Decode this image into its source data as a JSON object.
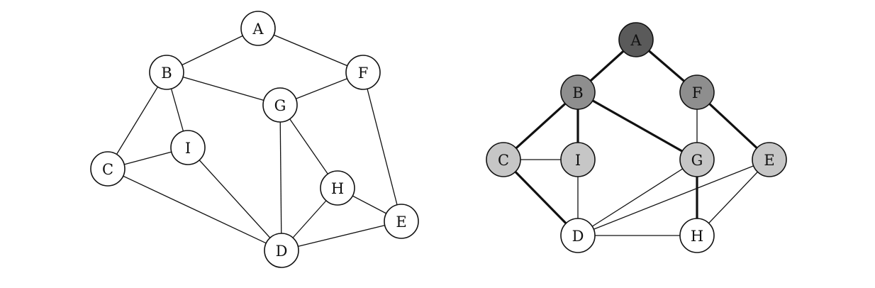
{
  "colors": {
    "background": "#ffffff",
    "line": "#111111",
    "level_0": "#5a5a5a",
    "level_1": "#8e8e8e",
    "level_2": "#c6c6c6",
    "level_3": "#ffffff"
  },
  "graphs": [
    {
      "nodes": [
        {
          "id": "A",
          "label": "A",
          "level": 3
        },
        {
          "id": "B",
          "label": "B",
          "level": 3
        },
        {
          "id": "F",
          "label": "F",
          "level": 3
        },
        {
          "id": "G",
          "label": "G",
          "level": 3
        },
        {
          "id": "I",
          "label": "I",
          "level": 3
        },
        {
          "id": "C",
          "label": "C",
          "level": 3
        },
        {
          "id": "H",
          "label": "H",
          "level": 3
        },
        {
          "id": "E",
          "label": "E",
          "level": 3
        },
        {
          "id": "D",
          "label": "D",
          "level": 3
        }
      ],
      "edges": [
        {
          "from": "A",
          "to": "B",
          "tree": false
        },
        {
          "from": "A",
          "to": "F",
          "tree": false
        },
        {
          "from": "B",
          "to": "G",
          "tree": false
        },
        {
          "from": "F",
          "to": "G",
          "tree": false
        },
        {
          "from": "B",
          "to": "C",
          "tree": false
        },
        {
          "from": "B",
          "to": "I",
          "tree": false
        },
        {
          "from": "C",
          "to": "I",
          "tree": false
        },
        {
          "from": "C",
          "to": "D",
          "tree": false
        },
        {
          "from": "I",
          "to": "D",
          "tree": false
        },
        {
          "from": "G",
          "to": "D",
          "tree": false
        },
        {
          "from": "G",
          "to": "H",
          "tree": false
        },
        {
          "from": "H",
          "to": "D",
          "tree": false
        },
        {
          "from": "H",
          "to": "E",
          "tree": false
        },
        {
          "from": "F",
          "to": "E",
          "tree": false
        },
        {
          "from": "D",
          "to": "E",
          "tree": false
        }
      ]
    },
    {
      "nodes": [
        {
          "id": "A",
          "label": "A",
          "level": 0
        },
        {
          "id": "B",
          "label": "B",
          "level": 1
        },
        {
          "id": "F",
          "label": "F",
          "level": 1
        },
        {
          "id": "C",
          "label": "C",
          "level": 2
        },
        {
          "id": "I",
          "label": "I",
          "level": 2
        },
        {
          "id": "G",
          "label": "G",
          "level": 2
        },
        {
          "id": "E",
          "label": "E",
          "level": 2
        },
        {
          "id": "D",
          "label": "D",
          "level": 3
        },
        {
          "id": "H",
          "label": "H",
          "level": 3
        }
      ],
      "edges": [
        {
          "from": "A",
          "to": "B",
          "tree": true
        },
        {
          "from": "A",
          "to": "F",
          "tree": true
        },
        {
          "from": "B",
          "to": "C",
          "tree": true
        },
        {
          "from": "B",
          "to": "I",
          "tree": true
        },
        {
          "from": "B",
          "to": "G",
          "tree": true
        },
        {
          "from": "F",
          "to": "E",
          "tree": true
        },
        {
          "from": "F",
          "to": "G",
          "tree": false
        },
        {
          "from": "C",
          "to": "I",
          "tree": false
        },
        {
          "from": "C",
          "to": "D",
          "tree": true
        },
        {
          "from": "I",
          "to": "D",
          "tree": false
        },
        {
          "from": "G",
          "to": "D",
          "tree": false
        },
        {
          "from": "G",
          "to": "H",
          "tree": true
        },
        {
          "from": "E",
          "to": "D",
          "tree": false
        },
        {
          "from": "E",
          "to": "H",
          "tree": false
        },
        {
          "from": "D",
          "to": "H",
          "tree": false
        }
      ]
    }
  ]
}
